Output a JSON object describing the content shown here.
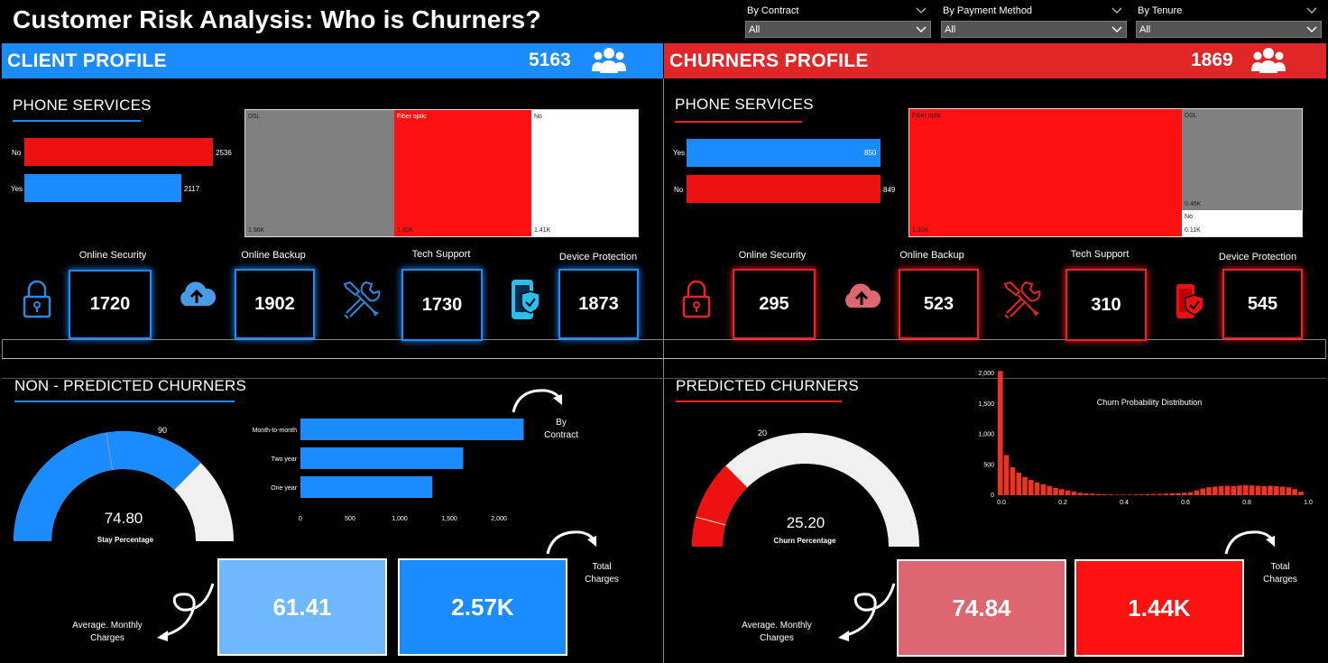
{
  "title": "Customer Risk Analysis: Who is Churners?",
  "slicers": [
    {
      "label": "By Contract",
      "value": "All"
    },
    {
      "label": "By Payment Method",
      "value": "All"
    },
    {
      "label": "By Tenure",
      "value": "All"
    }
  ],
  "colors": {
    "blue": "#1a8cff",
    "red": "#ee2222",
    "gray": "#808080",
    "white": "#ffffff",
    "light_blue": "#6fb8ff",
    "pink": "#dd6670"
  },
  "client": {
    "banner_title": "CLIENT PROFILE",
    "count": "5163",
    "icon": "people-icon",
    "phone_title": "PHONE SERVICES",
    "phone_bars": [
      {
        "label": "No",
        "value": 2536,
        "value_label": "2536",
        "color": "#ee1111"
      },
      {
        "label": "Yes",
        "value": 2117,
        "value_label": "2117",
        "color": "#1a8cff"
      }
    ],
    "internet_treemap": [
      {
        "label": "DSL",
        "value_label": "1.96K",
        "value": 1.96,
        "color": "#808080"
      },
      {
        "label": "Fiber optic",
        "value_label": "1.80K",
        "value": 1.8,
        "color": "#ff1111"
      },
      {
        "label": "No",
        "value_label": "1.41K",
        "value": 1.41,
        "color": "#ffffff"
      }
    ],
    "services": [
      {
        "label": "Online Security",
        "value": "1720",
        "icon": "lock-icon"
      },
      {
        "label": "Online Backup",
        "value": "1902",
        "icon": "cloud-upload-icon"
      },
      {
        "label": "Tech Support",
        "value": "1730",
        "icon": "tools-icon"
      },
      {
        "label": "Device Protection",
        "value": "1873",
        "icon": "phone-shield-icon"
      }
    ]
  },
  "churners": {
    "banner_title": "CHURNERS PROFILE",
    "count": "1869",
    "icon": "people-icon",
    "phone_title": "PHONE SERVICES",
    "phone_bars": [
      {
        "label": "Yes",
        "value": 850,
        "value_label": "850",
        "color": "#1a8cff"
      },
      {
        "label": "No",
        "value": 849,
        "value_label": "849",
        "color": "#ee1111"
      }
    ],
    "internet_treemap": [
      {
        "label": "Fiber optic",
        "value_label": "1.30K",
        "value": 1.3,
        "color": "#ff1111"
      },
      {
        "label": "DSL",
        "value_label": "0.46K",
        "value": 0.46,
        "color": "#808080"
      },
      {
        "label": "No",
        "value_label": "0.11K",
        "value": 0.11,
        "color": "#ffffff"
      }
    ],
    "services": [
      {
        "label": "Online Security",
        "value": "295",
        "icon": "lock-icon"
      },
      {
        "label": "Online Backup",
        "value": "523",
        "icon": "cloud-upload-icon"
      },
      {
        "label": "Tech Support",
        "value": "310",
        "icon": "tools-icon"
      },
      {
        "label": "Device Protection",
        "value": "545",
        "icon": "phone-shield-icon"
      }
    ]
  },
  "non_predicted": {
    "title": "NON - PREDICTED CHURNERS",
    "gauge_value": "74.80",
    "gauge_fraction": 0.748,
    "gauge_target": "90",
    "gauge_caption": "Stay Percentage",
    "contract_annotation": [
      "By",
      "Contract"
    ],
    "avg_label": [
      "Average. Monthly",
      "Charges"
    ],
    "total_label": [
      "Total",
      "Charges"
    ],
    "avg_monthly": "61.41",
    "total_charges": "2.57K"
  },
  "predicted": {
    "title": "PREDICTED CHURNERS",
    "gauge_value": "25.20",
    "gauge_fraction": 0.252,
    "gauge_target": "20",
    "gauge_caption": "Churn Percentage",
    "avg_label": [
      "Average. Monthly",
      "Charges"
    ],
    "total_label": [
      "Total",
      "Charges"
    ],
    "avg_monthly": "74.84",
    "total_charges": "1.44K"
  },
  "chart_data": [
    {
      "type": "bar",
      "orientation": "horizontal",
      "categories": [
        "Month-to-month",
        "Two year",
        "One year"
      ],
      "values": [
        2250,
        1640,
        1330
      ],
      "xticks": [
        "0",
        "500",
        "1,000",
        "1,500",
        "2,000"
      ],
      "xlim": [
        0,
        2300
      ],
      "grid": false
    },
    {
      "type": "bar",
      "title": "Churn Probability Distribution",
      "x": [
        0.0,
        0.02,
        0.04,
        0.06,
        0.08,
        0.1,
        0.12,
        0.14,
        0.16,
        0.18,
        0.2,
        0.22,
        0.24,
        0.26,
        0.28,
        0.3,
        0.32,
        0.34,
        0.36,
        0.38,
        0.4,
        0.42,
        0.44,
        0.46,
        0.48,
        0.5,
        0.52,
        0.54,
        0.56,
        0.58,
        0.6,
        0.62,
        0.64,
        0.66,
        0.68,
        0.7,
        0.72,
        0.74,
        0.76,
        0.78,
        0.8,
        0.82,
        0.84,
        0.86,
        0.88,
        0.9,
        0.92,
        0.94,
        0.96,
        0.98
      ],
      "values": [
        2040,
        660,
        460,
        370,
        300,
        250,
        210,
        180,
        150,
        120,
        100,
        80,
        60,
        40,
        30,
        25,
        20,
        15,
        12,
        10,
        10,
        10,
        12,
        15,
        18,
        20,
        22,
        25,
        30,
        35,
        40,
        50,
        80,
        110,
        130,
        140,
        150,
        155,
        150,
        160,
        165,
        160,
        155,
        150,
        155,
        150,
        140,
        130,
        100,
        60
      ],
      "yticks": [
        "0",
        "500",
        "1,000",
        "1,500",
        "2,000"
      ],
      "xticks": [
        "0.0",
        "0.2",
        "0.4",
        "0.6",
        "0.8",
        "1.0"
      ],
      "xlim": [
        0,
        1
      ],
      "ylim": [
        0,
        2000
      ],
      "grid": false
    }
  ]
}
